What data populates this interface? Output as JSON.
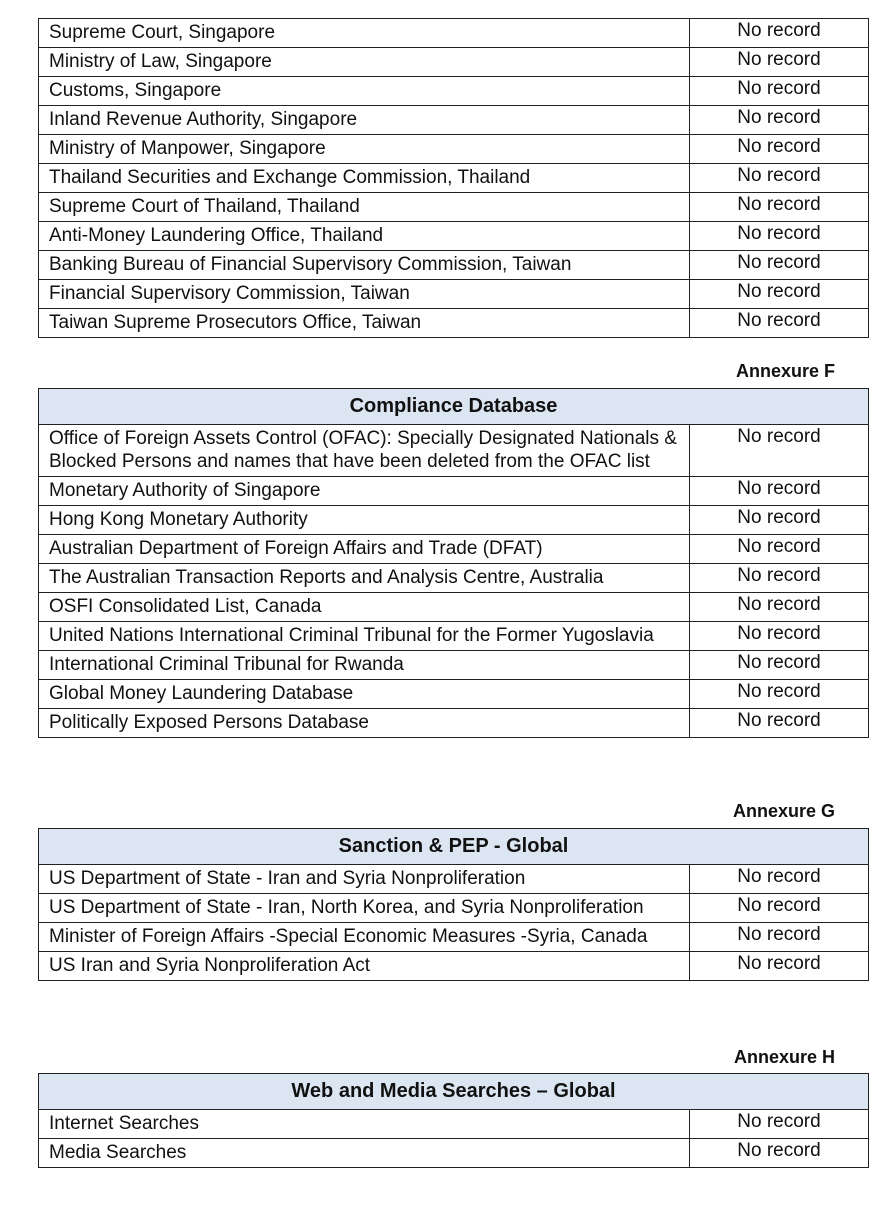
{
  "table_top": {
    "rows": [
      {
        "source": "Supreme Court, Singapore",
        "result": "No record"
      },
      {
        "source": "Ministry of Law, Singapore",
        "result": "No record"
      },
      {
        "source": "Customs, Singapore",
        "result": "No record"
      },
      {
        "source": "Inland Revenue Authority, Singapore",
        "result": "No record"
      },
      {
        "source": "Ministry of Manpower, Singapore",
        "result": "No record"
      },
      {
        "source": "Thailand Securities and Exchange Commission, Thailand",
        "result": "No record"
      },
      {
        "source": "Supreme Court of Thailand, Thailand",
        "result": "No record"
      },
      {
        "source": "Anti-Money Laundering Office, Thailand",
        "result": "No record"
      },
      {
        "source": "Banking Bureau of Financial Supervisory Commission, Taiwan",
        "result": "No record"
      },
      {
        "source": "Financial Supervisory Commission, Taiwan",
        "result": "No record"
      },
      {
        "source": "Taiwan Supreme Prosecutors Office, Taiwan",
        "result": "No record"
      }
    ]
  },
  "annexure_f": {
    "label": "Annexure F",
    "title": "Compliance Database",
    "rows": [
      {
        "source": "Office of Foreign Assets Control (OFAC): Specially Designated Nationals & Blocked Persons and names that have been deleted from the OFAC list",
        "result": "No record"
      },
      {
        "source": "Monetary Authority of Singapore",
        "result": "No record"
      },
      {
        "source": "Hong Kong Monetary Authority",
        "result": "No record"
      },
      {
        "source": "Australian Department of Foreign Affairs and Trade (DFAT)",
        "result": "No record"
      },
      {
        "source": "The Australian Transaction Reports and Analysis Centre, Australia",
        "result": "No record"
      },
      {
        "source": "OSFI Consolidated List, Canada",
        "result": "No record"
      },
      {
        "source": "United Nations International Criminal Tribunal for the Former Yugoslavia",
        "result": "No record"
      },
      {
        "source": "International Criminal Tribunal for Rwanda",
        "result": "No record"
      },
      {
        "source": "Global Money Laundering Database",
        "result": "No record"
      },
      {
        "source": "Politically Exposed Persons Database",
        "result": "No record"
      }
    ]
  },
  "annexure_g": {
    "label": "Annexure G",
    "title": "Sanction & PEP - Global",
    "rows": [
      {
        "source": "US Department of State - Iran and Syria Nonproliferation",
        "result": "No record"
      },
      {
        "source": "US Department of State - Iran, North Korea, and Syria Nonproliferation",
        "result": "No record"
      },
      {
        "source": "Minister of Foreign Affairs -Special Economic Measures -Syria, Canada",
        "result": "No record"
      },
      {
        "source": "US Iran and Syria Nonproliferation Act",
        "result": "No record"
      }
    ]
  },
  "annexure_h": {
    "label": "Annexure H",
    "title": "Web and Media Searches – Global",
    "rows": [
      {
        "source": "Internet Searches",
        "result": "No record"
      },
      {
        "source": "Media Searches",
        "result": "No record"
      }
    ]
  }
}
